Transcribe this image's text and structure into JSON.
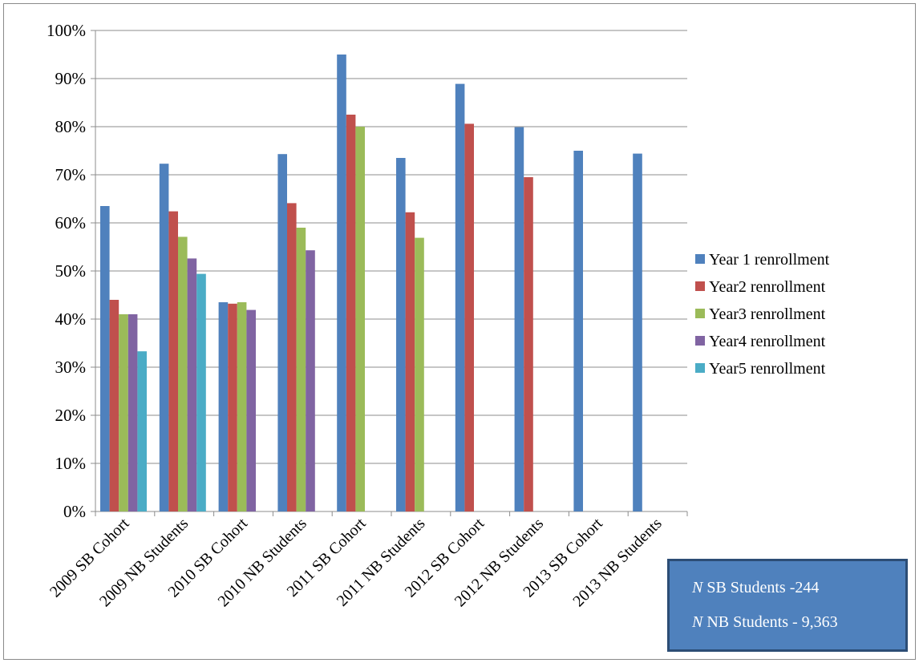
{
  "chart_data": {
    "type": "bar",
    "categories": [
      "2009 SB Cohort",
      "2009 NB Students",
      "2010 SB Cohort",
      "2010 NB Students",
      "2011 SB Cohort",
      "2011 NB Students",
      "2012 SB Cohort",
      "2012 NB Students",
      "2013 SB Cohort",
      "2013 NB Students"
    ],
    "series": [
      {
        "name": "Year 1 renrollment",
        "color": "#4f81bd",
        "values": [
          63.5,
          72.3,
          43.5,
          74.3,
          95.0,
          73.5,
          88.9,
          79.9,
          75.0,
          74.4
        ]
      },
      {
        "name": "Year2 renrollment",
        "color": "#c0504d",
        "values": [
          44.0,
          62.4,
          43.2,
          64.1,
          82.5,
          62.2,
          80.6,
          69.5,
          null,
          null
        ]
      },
      {
        "name": "Year3 renrollment",
        "color": "#9bbb59",
        "values": [
          41.0,
          57.1,
          43.5,
          59.0,
          80.0,
          56.9,
          null,
          null,
          null,
          null
        ]
      },
      {
        "name": "Year4 renrollment",
        "color": "#8064a2",
        "values": [
          41.0,
          52.6,
          41.9,
          54.3,
          null,
          null,
          null,
          null,
          null,
          null
        ]
      },
      {
        "name": "Year5 renrollment",
        "color": "#4bacc6",
        "values": [
          33.3,
          49.4,
          null,
          null,
          null,
          null,
          null,
          null,
          null,
          null
        ]
      }
    ],
    "ylim": [
      0,
      100
    ],
    "yticks": [
      0,
      10,
      20,
      30,
      40,
      50,
      60,
      70,
      80,
      90,
      100
    ],
    "ytick_labels": [
      "0%",
      "10%",
      "20%",
      "30%",
      "40%",
      "50%",
      "60%",
      "70%",
      "80%",
      "90%",
      "100%"
    ],
    "grid": true,
    "legend_position": "right",
    "title": "",
    "xlabel": "",
    "ylabel": ""
  },
  "annotation": {
    "line1_n": "N",
    "line1_text": " SB Students -244",
    "line2_n": "N",
    "line2_text": " NB Students - 9,363"
  }
}
